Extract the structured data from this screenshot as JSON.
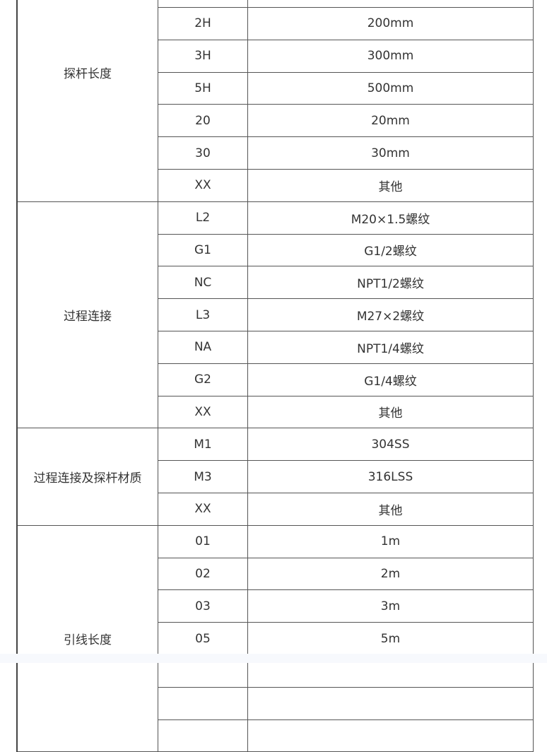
{
  "groups": [
    {
      "label": "探杆长度",
      "rows": [
        {
          "code": "",
          "desc": ""
        },
        {
          "code": "",
          "desc": ""
        },
        {
          "code": "2H",
          "desc": "200mm"
        },
        {
          "code": "3H",
          "desc": "300mm"
        },
        {
          "code": "5H",
          "desc": "500mm"
        },
        {
          "code": "20",
          "desc": "20mm"
        },
        {
          "code": "30",
          "desc": "30mm"
        },
        {
          "code": "XX",
          "desc": "其他"
        }
      ]
    },
    {
      "label": "过程连接",
      "rows": [
        {
          "code": "L2",
          "desc": "M20×1.5螺纹"
        },
        {
          "code": "G1",
          "desc": "G1/2螺纹"
        },
        {
          "code": "NC",
          "desc": "NPT1/2螺纹"
        },
        {
          "code": "L3",
          "desc": "M27×2螺纹"
        },
        {
          "code": "NA",
          "desc": "NPT1/4螺纹"
        },
        {
          "code": "G2",
          "desc": "G1/4螺纹"
        },
        {
          "code": "XX",
          "desc": "其他"
        }
      ]
    },
    {
      "label": "过程连接及探杆材质",
      "rows": [
        {
          "code": "M1",
          "desc": "304SS"
        },
        {
          "code": "M3",
          "desc": "316LSS"
        },
        {
          "code": "XX",
          "desc": "其他"
        }
      ]
    },
    {
      "label": "引线长度",
      "rows": [
        {
          "code": "01",
          "desc": "1m"
        },
        {
          "code": "02",
          "desc": "2m"
        },
        {
          "code": "03",
          "desc": "3m"
        },
        {
          "code": "05",
          "desc": "5m"
        },
        {
          "code": "",
          "desc": ""
        },
        {
          "code": "",
          "desc": ""
        },
        {
          "code": "",
          "desc": ""
        }
      ]
    }
  ]
}
